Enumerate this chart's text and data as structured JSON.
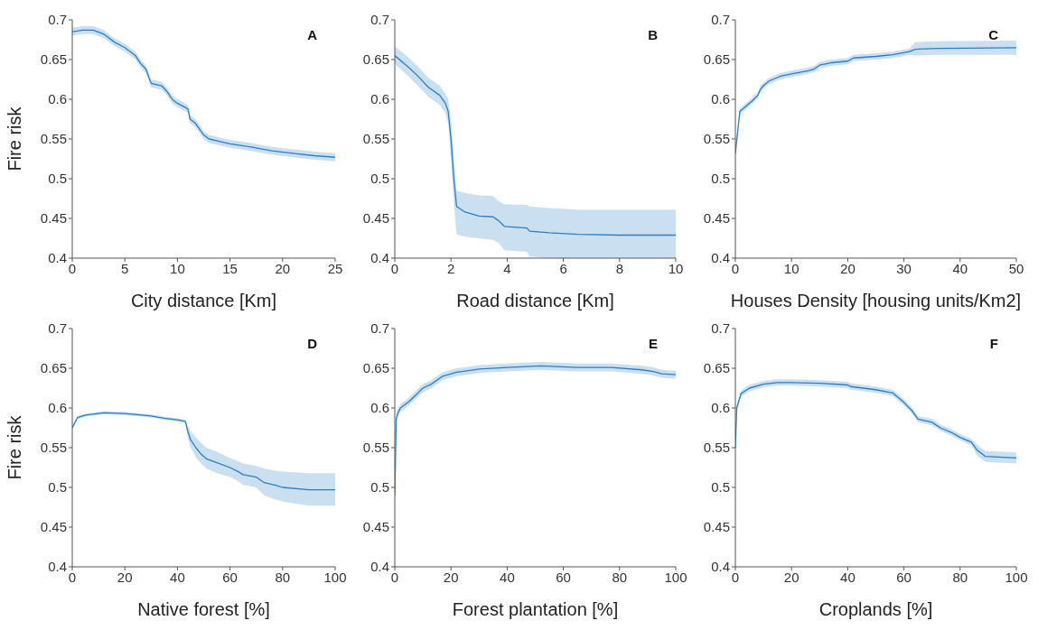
{
  "chart_data": [
    {
      "type": "line",
      "ylabel": "Fire risk",
      "xlabel": "City distance [Km]",
      "annotations": [
        "A"
      ],
      "xlim": [
        0,
        25
      ],
      "xticks": [
        0,
        5,
        10,
        15,
        20,
        25
      ],
      "ylim": [
        0.4,
        0.7
      ],
      "yticks": [
        0.4,
        0.45,
        0.5,
        0.55,
        0.6,
        0.65,
        0.7
      ],
      "x": [
        0,
        1,
        2,
        3,
        4,
        5,
        6,
        6.5,
        7,
        7.5,
        8.5,
        9,
        9.5,
        10,
        11,
        11.2,
        11.7,
        12.5,
        13,
        14,
        15,
        17,
        19,
        21,
        23,
        25
      ],
      "series": [
        {
          "color": "#2b7fc4",
          "values": [
            0.685,
            0.687,
            0.687,
            0.682,
            0.672,
            0.665,
            0.655,
            0.645,
            0.638,
            0.62,
            0.617,
            0.61,
            0.6,
            0.595,
            0.588,
            0.575,
            0.57,
            0.555,
            0.55,
            0.547,
            0.544,
            0.54,
            0.535,
            0.532,
            0.529,
            0.527
          ],
          "lower": [
            0.68,
            0.682,
            0.682,
            0.677,
            0.667,
            0.66,
            0.65,
            0.64,
            0.633,
            0.615,
            0.612,
            0.605,
            0.595,
            0.59,
            0.583,
            0.57,
            0.565,
            0.55,
            0.545,
            0.542,
            0.539,
            0.535,
            0.53,
            0.527,
            0.524,
            0.522
          ],
          "upper": [
            0.69,
            0.692,
            0.692,
            0.687,
            0.677,
            0.67,
            0.66,
            0.65,
            0.643,
            0.625,
            0.622,
            0.615,
            0.605,
            0.6,
            0.593,
            0.58,
            0.575,
            0.56,
            0.555,
            0.552,
            0.549,
            0.545,
            0.54,
            0.537,
            0.534,
            0.532
          ]
        }
      ]
    },
    {
      "type": "line",
      "xlabel": "Road distance [Km]",
      "annotations": [
        "B"
      ],
      "xlim": [
        0,
        10
      ],
      "xticks": [
        0,
        2,
        4,
        6,
        8,
        10
      ],
      "ylim": [
        0.4,
        0.7
      ],
      "yticks": [
        0.4,
        0.45,
        0.5,
        0.55,
        0.6,
        0.65,
        0.7
      ],
      "x": [
        0,
        0.5,
        0.8,
        1.2,
        1.6,
        1.8,
        1.9,
        2,
        2.1,
        2.2,
        2.5,
        3,
        3.5,
        3.7,
        3.9,
        4.7,
        4.8,
        5.5,
        6.5,
        8,
        10
      ],
      "series": [
        {
          "color": "#2b7fc4",
          "values": [
            0.655,
            0.64,
            0.63,
            0.615,
            0.605,
            0.595,
            0.585,
            0.55,
            0.5,
            0.465,
            0.458,
            0.453,
            0.452,
            0.447,
            0.44,
            0.438,
            0.434,
            0.432,
            0.43,
            0.429,
            0.429
          ],
          "lower": [
            0.645,
            0.628,
            0.618,
            0.603,
            0.593,
            0.583,
            0.57,
            0.525,
            0.47,
            0.43,
            0.427,
            0.425,
            0.423,
            0.419,
            0.41,
            0.408,
            0.402,
            0.4,
            0.4,
            0.4,
            0.4
          ],
          "upper": [
            0.667,
            0.652,
            0.642,
            0.627,
            0.617,
            0.607,
            0.6,
            0.575,
            0.53,
            0.485,
            0.482,
            0.479,
            0.478,
            0.472,
            0.468,
            0.467,
            0.465,
            0.463,
            0.461,
            0.461,
            0.461
          ]
        }
      ]
    },
    {
      "type": "line",
      "xlabel": "Houses Density [housing units/Km2]",
      "annotations": [
        "C"
      ],
      "xlim": [
        0,
        50
      ],
      "xticks": [
        0,
        10,
        20,
        30,
        40,
        50
      ],
      "ylim": [
        0.4,
        0.7
      ],
      "yticks": [
        0.4,
        0.45,
        0.5,
        0.55,
        0.6,
        0.65,
        0.7
      ],
      "x": [
        0,
        0.8,
        1.5,
        3,
        4,
        4.5,
        5,
        6,
        8,
        10,
        13,
        14,
        15,
        17,
        20,
        21,
        25,
        28,
        31,
        32,
        36,
        50
      ],
      "series": [
        {
          "color": "#2b7fc4",
          "values": [
            0.532,
            0.585,
            0.589,
            0.598,
            0.605,
            0.613,
            0.617,
            0.623,
            0.629,
            0.632,
            0.636,
            0.638,
            0.643,
            0.646,
            0.648,
            0.652,
            0.654,
            0.656,
            0.66,
            0.663,
            0.664,
            0.665
          ],
          "lower": [
            0.528,
            0.581,
            0.585,
            0.594,
            0.601,
            0.609,
            0.613,
            0.619,
            0.625,
            0.628,
            0.632,
            0.634,
            0.639,
            0.642,
            0.644,
            0.648,
            0.65,
            0.652,
            0.656,
            0.655,
            0.656,
            0.656
          ],
          "upper": [
            0.536,
            0.589,
            0.593,
            0.602,
            0.609,
            0.617,
            0.621,
            0.627,
            0.633,
            0.636,
            0.64,
            0.642,
            0.647,
            0.65,
            0.652,
            0.656,
            0.658,
            0.66,
            0.664,
            0.672,
            0.673,
            0.674
          ]
        }
      ]
    },
    {
      "type": "line",
      "ylabel": "Fire risk",
      "xlabel": "Native forest [%]",
      "annotations": [
        "D"
      ],
      "xlim": [
        0,
        100
      ],
      "xticks": [
        0,
        20,
        40,
        60,
        80,
        100
      ],
      "ylim": [
        0.4,
        0.7
      ],
      "yticks": [
        0.4,
        0.45,
        0.5,
        0.55,
        0.6,
        0.65,
        0.7
      ],
      "x": [
        0,
        2,
        5,
        12,
        20,
        30,
        35,
        40,
        43,
        44,
        45,
        47,
        49,
        51,
        55,
        60,
        63,
        65,
        70,
        73,
        77,
        80,
        90,
        100
      ],
      "series": [
        {
          "color": "#2b7fc4",
          "values": [
            0.575,
            0.588,
            0.591,
            0.594,
            0.593,
            0.59,
            0.587,
            0.585,
            0.583,
            0.57,
            0.56,
            0.55,
            0.542,
            0.536,
            0.531,
            0.525,
            0.52,
            0.516,
            0.513,
            0.506,
            0.503,
            0.5,
            0.497,
            0.497
          ],
          "lower": [
            0.573,
            0.586,
            0.589,
            0.592,
            0.591,
            0.588,
            0.585,
            0.583,
            0.581,
            0.562,
            0.55,
            0.538,
            0.53,
            0.524,
            0.518,
            0.513,
            0.508,
            0.503,
            0.5,
            0.49,
            0.485,
            0.482,
            0.477,
            0.477
          ],
          "upper": [
            0.577,
            0.59,
            0.593,
            0.596,
            0.595,
            0.592,
            0.589,
            0.587,
            0.585,
            0.578,
            0.57,
            0.563,
            0.556,
            0.55,
            0.545,
            0.537,
            0.533,
            0.53,
            0.527,
            0.524,
            0.521,
            0.52,
            0.518,
            0.518
          ]
        }
      ]
    },
    {
      "type": "line",
      "xlabel": "Forest plantation [%]",
      "annotations": [
        "E"
      ],
      "xlim": [
        0,
        100
      ],
      "xticks": [
        0,
        20,
        40,
        60,
        80,
        100
      ],
      "ylim": [
        0.4,
        0.7
      ],
      "yticks": [
        0.4,
        0.45,
        0.5,
        0.55,
        0.6,
        0.65,
        0.7
      ],
      "x": [
        0,
        0.5,
        1,
        2,
        5,
        8,
        10,
        13,
        17,
        22,
        30,
        40,
        52,
        65,
        77,
        88,
        92,
        95,
        100
      ],
      "series": [
        {
          "color": "#2b7fc4",
          "values": [
            0.49,
            0.585,
            0.593,
            0.6,
            0.608,
            0.618,
            0.625,
            0.63,
            0.64,
            0.645,
            0.649,
            0.651,
            0.653,
            0.651,
            0.651,
            0.648,
            0.646,
            0.643,
            0.642
          ],
          "lower": [
            0.485,
            0.58,
            0.588,
            0.595,
            0.603,
            0.613,
            0.62,
            0.625,
            0.635,
            0.64,
            0.644,
            0.646,
            0.648,
            0.646,
            0.646,
            0.643,
            0.641,
            0.638,
            0.637
          ],
          "upper": [
            0.495,
            0.59,
            0.598,
            0.605,
            0.613,
            0.623,
            0.63,
            0.635,
            0.645,
            0.65,
            0.654,
            0.656,
            0.658,
            0.656,
            0.656,
            0.653,
            0.651,
            0.648,
            0.647
          ]
        }
      ]
    },
    {
      "type": "line",
      "xlabel": "Croplands [%]",
      "annotations": [
        "F"
      ],
      "xlim": [
        0,
        100
      ],
      "xticks": [
        0,
        20,
        40,
        60,
        80,
        100
      ],
      "ylim": [
        0.4,
        0.7
      ],
      "yticks": [
        0.4,
        0.45,
        0.5,
        0.55,
        0.6,
        0.65,
        0.7
      ],
      "x": [
        0,
        0.5,
        2,
        5,
        10,
        15,
        20,
        30,
        40,
        41,
        50,
        56,
        60,
        63,
        65,
        70,
        73,
        77,
        80,
        84,
        86,
        89,
        95,
        100
      ],
      "series": [
        {
          "color": "#2b7fc4",
          "values": [
            0.55,
            0.6,
            0.618,
            0.625,
            0.63,
            0.632,
            0.632,
            0.631,
            0.629,
            0.627,
            0.623,
            0.619,
            0.607,
            0.596,
            0.586,
            0.582,
            0.575,
            0.569,
            0.563,
            0.557,
            0.547,
            0.539,
            0.538,
            0.537
          ],
          "lower": [
            0.546,
            0.596,
            0.614,
            0.621,
            0.626,
            0.628,
            0.628,
            0.627,
            0.625,
            0.623,
            0.619,
            0.615,
            0.603,
            0.592,
            0.582,
            0.578,
            0.571,
            0.565,
            0.559,
            0.553,
            0.54,
            0.532,
            0.531,
            0.53
          ],
          "upper": [
            0.554,
            0.604,
            0.622,
            0.629,
            0.634,
            0.636,
            0.636,
            0.635,
            0.633,
            0.631,
            0.627,
            0.623,
            0.611,
            0.6,
            0.59,
            0.586,
            0.579,
            0.573,
            0.567,
            0.561,
            0.554,
            0.546,
            0.545,
            0.544
          ]
        }
      ]
    }
  ]
}
